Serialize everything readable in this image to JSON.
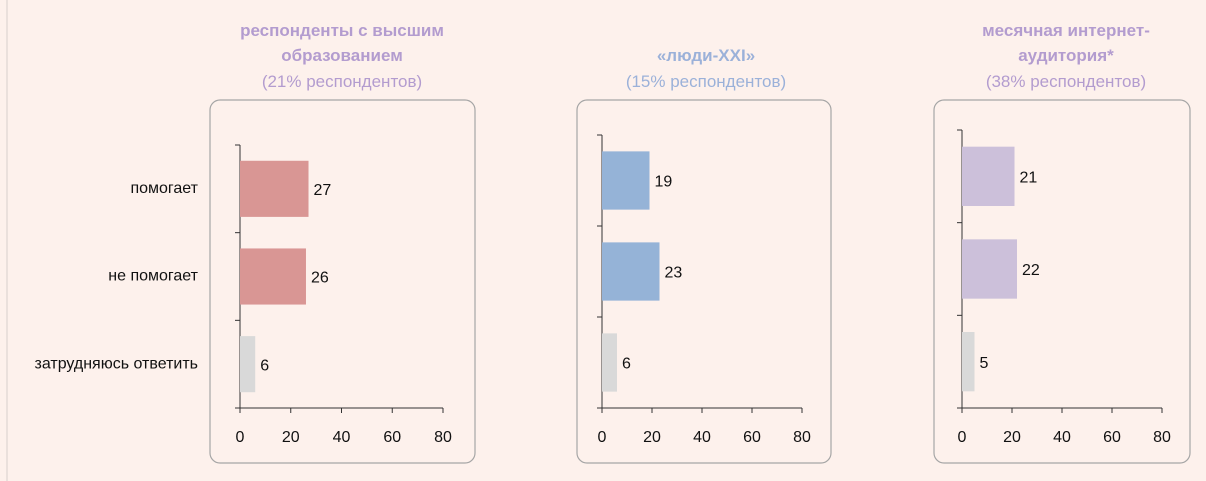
{
  "chart_data": [
    {
      "type": "bar",
      "orientation": "horizontal",
      "title": "респонденты с высшим образованием",
      "subtitle": "(21% респондентов)",
      "title_color": "#b39ccf",
      "categories": [
        "помогает",
        "не помогает",
        "затрудняюсь ответить"
      ],
      "values": [
        27,
        26,
        6
      ],
      "colors": [
        "#d99694",
        "#d99694",
        "#d9d9d9"
      ],
      "xlim": [
        0,
        80
      ],
      "xticks": [
        0,
        20,
        40,
        60,
        80
      ]
    },
    {
      "type": "bar",
      "orientation": "horizontal",
      "title": "«люди-XXI»",
      "subtitle": "(15% респондентов)",
      "title_color": "#9bb1d9",
      "categories": [
        null,
        null,
        null
      ],
      "values": [
        19,
        23,
        6
      ],
      "colors": [
        "#95b3d7",
        "#95b3d7",
        "#d9d9d9"
      ],
      "xlim": [
        0,
        80
      ],
      "xticks": [
        0,
        20,
        40,
        60,
        80
      ]
    },
    {
      "type": "bar",
      "orientation": "horizontal",
      "title": "месячная интернет-аудитория*",
      "subtitle": "(38% респондентов)",
      "title_color": "#b39ccf",
      "categories": [
        null,
        null,
        null
      ],
      "values": [
        21,
        22,
        5
      ],
      "colors": [
        "#ccc0da",
        "#ccc0da",
        "#d9d9d9"
      ],
      "xlim": [
        0,
        80
      ],
      "xticks": [
        0,
        20,
        40,
        60,
        80
      ]
    }
  ]
}
